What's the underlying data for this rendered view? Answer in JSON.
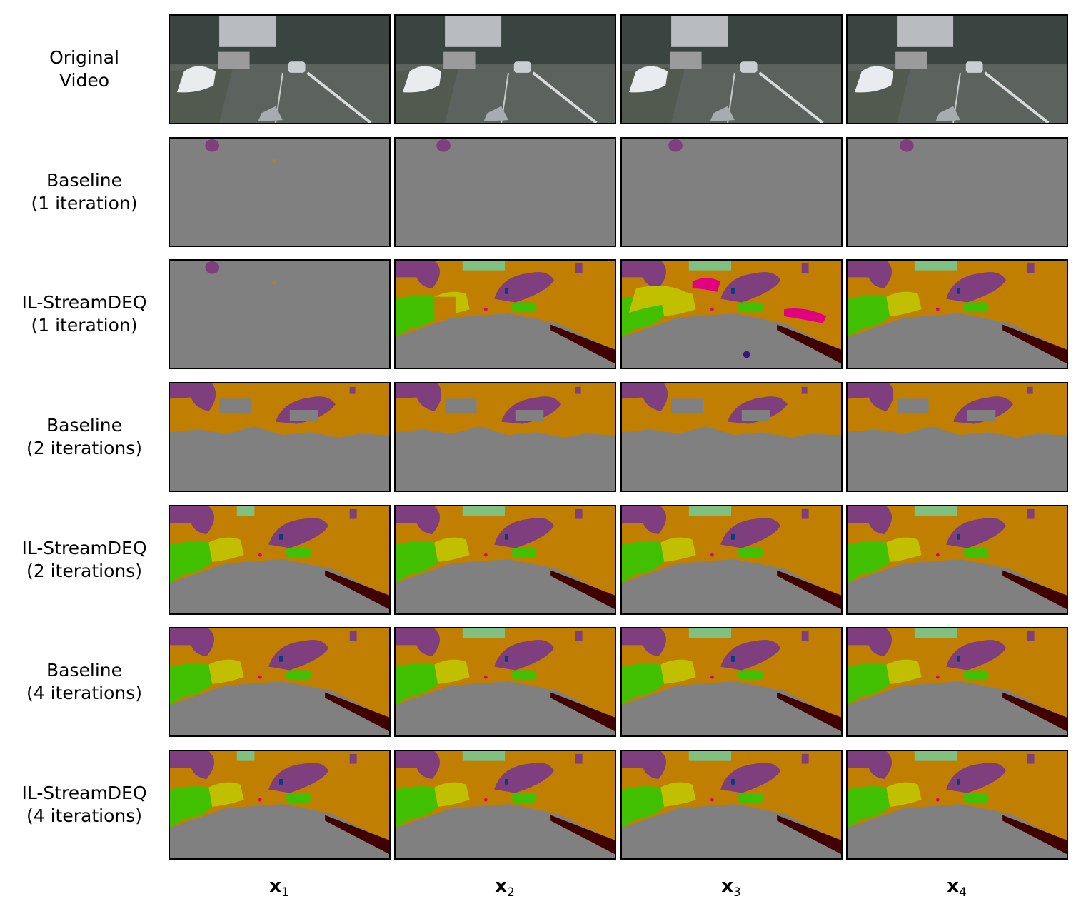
{
  "rows": [
    {
      "line1": "Original",
      "line2": "Video",
      "kind": "video"
    },
    {
      "line1": "Baseline",
      "line2": "(1 iteration)",
      "kind": "empty"
    },
    {
      "line1": "IL-StreamDEQ",
      "line2": "(1 iteration)",
      "kind": "il1"
    },
    {
      "line1": "Baseline",
      "line2": "(2 iterations)",
      "kind": "partial"
    },
    {
      "line1": "IL-StreamDEQ",
      "line2": "(2 iterations)",
      "kind": "full"
    },
    {
      "line1": "Baseline",
      "line2": "(4 iterations)",
      "kind": "full"
    },
    {
      "line1": "IL-StreamDEQ",
      "line2": "(4 iterations)",
      "kind": "full"
    }
  ],
  "columns": [
    {
      "base": "x",
      "sub": "1"
    },
    {
      "base": "x",
      "sub": "2"
    },
    {
      "base": "x",
      "sub": "3"
    },
    {
      "base": "x",
      "sub": "4"
    }
  ],
  "colors": {
    "road": "#808080",
    "building": "#c07f00",
    "vegetation": "#7f3f7f",
    "car": "#40c000",
    "truck": "#c0c000",
    "sky": "#80c080",
    "sidewalk": "#400000",
    "pole": "#004080",
    "person": "#e00080"
  }
}
